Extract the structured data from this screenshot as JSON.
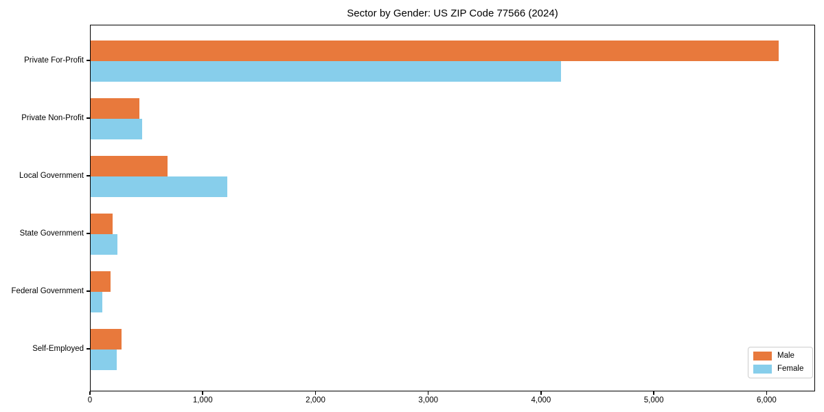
{
  "chart_data": {
    "type": "bar",
    "orientation": "horizontal",
    "title": "Sector by Gender: US ZIP Code 77566 (2024)",
    "xlabel": "",
    "ylabel": "",
    "categories": [
      "Private For-Profit",
      "Private Non-Profit",
      "Local Government",
      "State Government",
      "Federal Government",
      "Self-Employed"
    ],
    "series": [
      {
        "name": "Male",
        "color": "#E8793C",
        "values": [
          6100,
          435,
          680,
          195,
          175,
          275
        ]
      },
      {
        "name": "Female",
        "color": "#87CEEB",
        "values": [
          4170,
          455,
          1210,
          235,
          105,
          230
        ]
      }
    ],
    "xlim": [
      0,
      6430
    ],
    "xticks": [
      0,
      1000,
      2000,
      3000,
      4000,
      5000,
      6000
    ],
    "xtick_labels": [
      "0",
      "1,000",
      "2,000",
      "3,000",
      "4,000",
      "5,000",
      "6,000"
    ],
    "grid": false,
    "background_color": "#ffffff",
    "axis_color": "#000000",
    "legend": {
      "position": "lower-right",
      "entries": [
        "Male",
        "Female"
      ]
    }
  }
}
